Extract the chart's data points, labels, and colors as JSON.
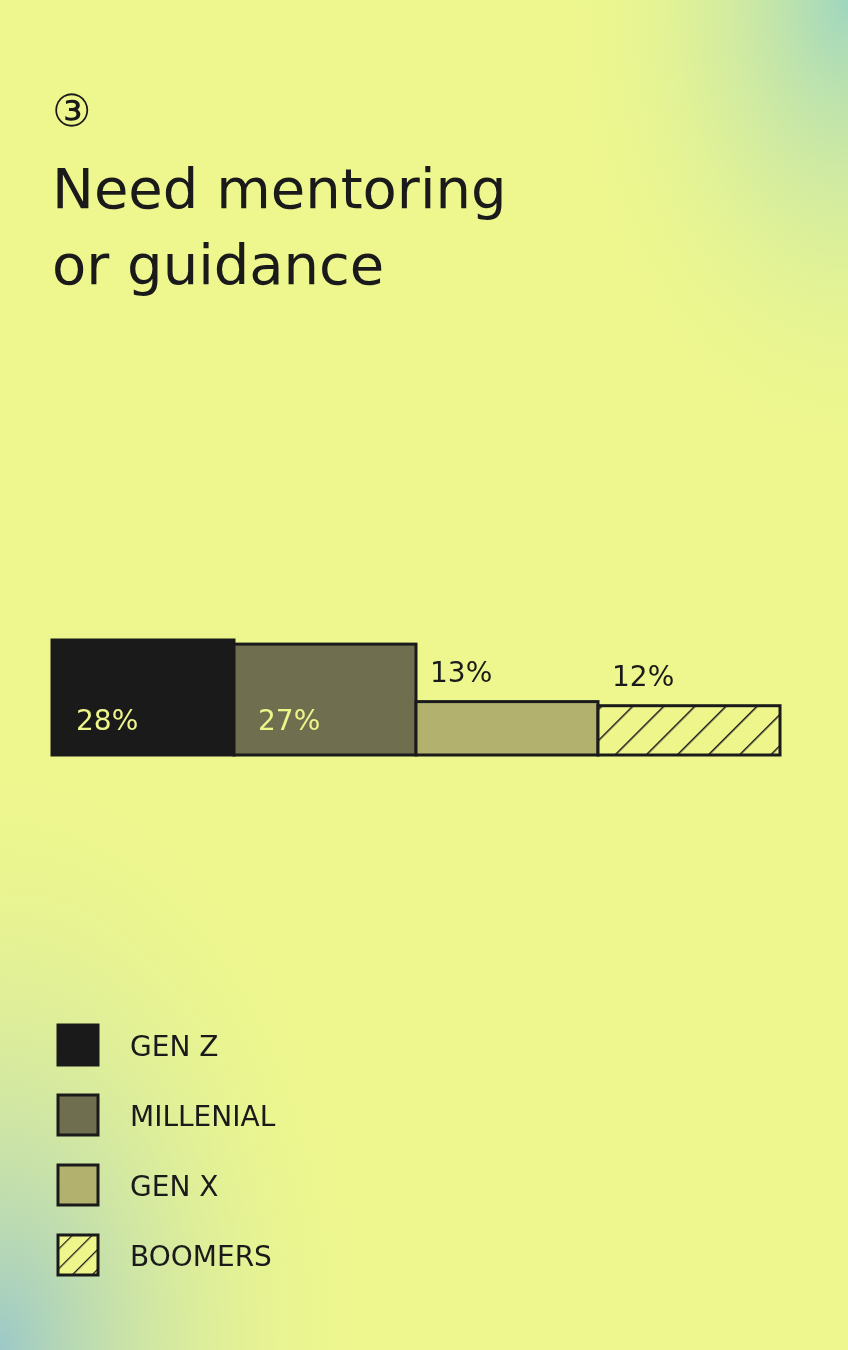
{
  "chart_data": {
    "type": "bar",
    "title": "Need mentoring or guidance",
    "annotations": [
      "③"
    ],
    "categories": [
      null
    ],
    "series": [
      {
        "name": "GEN Z",
        "color": "#1a1a1a",
        "values": [
          28
        ],
        "value_labels": [
          "28%"
        ]
      },
      {
        "name": "MILLENIAL",
        "color": "#6f6f4f",
        "values": [
          27
        ],
        "value_labels": [
          "27%"
        ]
      },
      {
        "name": "GEN X",
        "color": "#b2b26e",
        "values": [
          13
        ],
        "value_labels": [
          "13%"
        ]
      },
      {
        "name": "BOOMERS",
        "color": "#eef58a",
        "values": [
          12
        ],
        "value_labels": [
          "12%"
        ]
      }
    ],
    "legend": "bottom left"
  }
}
